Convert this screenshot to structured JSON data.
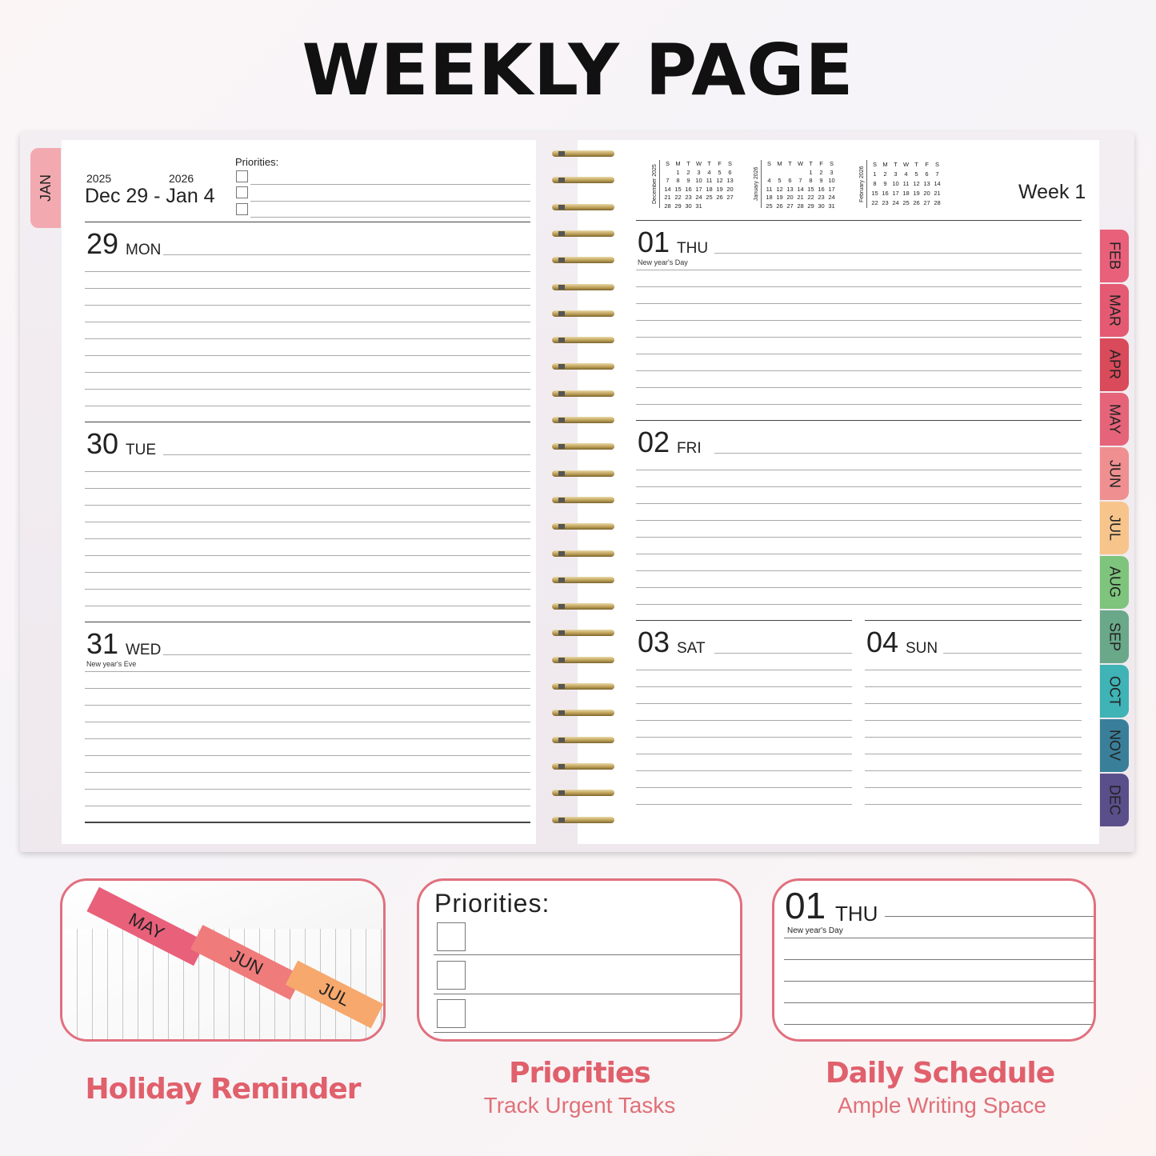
{
  "title": "WEEKLY PAGE",
  "left_page": {
    "tab": "JAN",
    "year_start": "2025",
    "year_end": "2026",
    "range": "Dec 29 - Jan 4",
    "priorities_label": "Priorities:",
    "days": [
      {
        "num": "29",
        "name": "MON",
        "holiday": ""
      },
      {
        "num": "30",
        "name": "TUE",
        "holiday": ""
      },
      {
        "num": "31",
        "name": "WED",
        "holiday": "New year's Eve"
      }
    ]
  },
  "right_page": {
    "week": "Week 1",
    "mini_calendars": [
      {
        "month": "December 2025",
        "head": [
          "S",
          "M",
          "T",
          "W",
          "T",
          "F",
          "S"
        ],
        "rows": [
          [
            "",
            "1",
            "2",
            "3",
            "4",
            "5",
            "6"
          ],
          [
            "7",
            "8",
            "9",
            "10",
            "11",
            "12",
            "13"
          ],
          [
            "14",
            "15",
            "16",
            "17",
            "18",
            "19",
            "20"
          ],
          [
            "21",
            "22",
            "23",
            "24",
            "25",
            "26",
            "27"
          ],
          [
            "28",
            "29",
            "30",
            "31",
            "",
            "",
            ""
          ]
        ]
      },
      {
        "month": "January 2026",
        "head": [
          "S",
          "M",
          "T",
          "W",
          "T",
          "F",
          "S"
        ],
        "rows": [
          [
            "",
            "",
            "",
            "",
            "1",
            "2",
            "3"
          ],
          [
            "4",
            "5",
            "6",
            "7",
            "8",
            "9",
            "10"
          ],
          [
            "11",
            "12",
            "13",
            "14",
            "15",
            "16",
            "17"
          ],
          [
            "18",
            "19",
            "20",
            "21",
            "22",
            "23",
            "24"
          ],
          [
            "25",
            "26",
            "27",
            "28",
            "29",
            "30",
            "31"
          ]
        ]
      },
      {
        "month": "February 2026",
        "head": [
          "S",
          "M",
          "T",
          "W",
          "T",
          "F",
          "S"
        ],
        "rows": [
          [
            "1",
            "2",
            "3",
            "4",
            "5",
            "6",
            "7"
          ],
          [
            "8",
            "9",
            "10",
            "11",
            "12",
            "13",
            "14"
          ],
          [
            "15",
            "16",
            "17",
            "18",
            "19",
            "20",
            "21"
          ],
          [
            "22",
            "23",
            "24",
            "25",
            "26",
            "27",
            "28"
          ]
        ]
      }
    ],
    "days": [
      {
        "num": "01",
        "name": "THU",
        "holiday": "New year's Day"
      },
      {
        "num": "02",
        "name": "FRI",
        "holiday": ""
      },
      {
        "num": "03",
        "name": "SAT",
        "holiday": ""
      },
      {
        "num": "04",
        "name": "SUN",
        "holiday": ""
      }
    ]
  },
  "month_tabs": [
    {
      "label": "FEB",
      "color": "#e8607a"
    },
    {
      "label": "MAR",
      "color": "#e45a72"
    },
    {
      "label": "APR",
      "color": "#d94a5a"
    },
    {
      "label": "MAY",
      "color": "#e6647a"
    },
    {
      "label": "JUN",
      "color": "#ef8f8f"
    },
    {
      "label": "JUL",
      "color": "#f7c58c"
    },
    {
      "label": "AUG",
      "color": "#7ec47c"
    },
    {
      "label": "SEP",
      "color": "#6aa88a"
    },
    {
      "label": "OCT",
      "color": "#3fb3b5"
    },
    {
      "label": "NOV",
      "color": "#3a7f9a"
    },
    {
      "label": "DEC",
      "color": "#5a4f8a"
    }
  ],
  "features": [
    {
      "title": "Holiday Reminder",
      "subtitle": "",
      "tabs": [
        "MAY",
        "JUN",
        "JUL"
      ]
    },
    {
      "title": "Priorities",
      "subtitle": "Track Urgent Tasks",
      "label": "Priorities:"
    },
    {
      "title": "Daily Schedule",
      "subtitle": "Ample Writing Space",
      "num": "01",
      "name": "THU",
      "holiday": "New year's Day"
    }
  ],
  "accent": "#e0606c"
}
